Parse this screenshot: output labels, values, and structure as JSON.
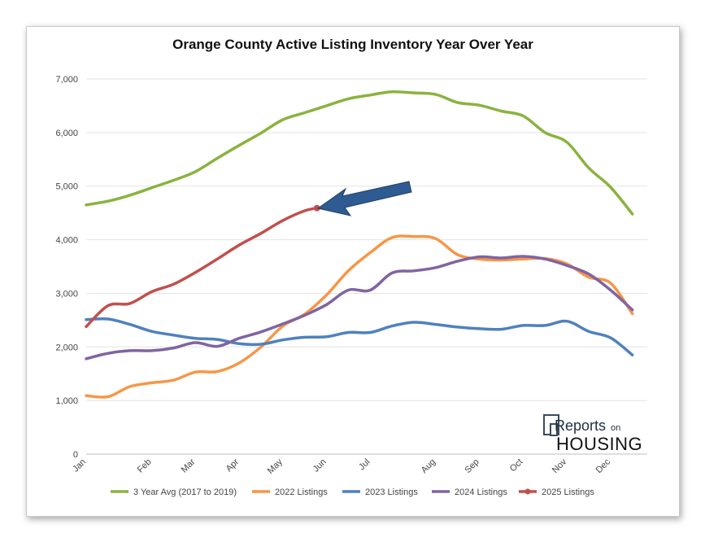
{
  "chart_data": {
    "type": "line",
    "title": "Orange County Active Listing Inventory Year Over Year",
    "xlabel": "",
    "ylabel": "",
    "ylim": [
      0,
      7000
    ],
    "yticks": [
      0,
      1000,
      2000,
      3000,
      4000,
      5000,
      6000,
      7000
    ],
    "ytick_labels": [
      "0",
      "1,000",
      "2,000",
      "3,000",
      "4,000",
      "5,000",
      "6,000",
      "7,000"
    ],
    "xlim": [
      0,
      12.84
    ],
    "x_tick_labels": [
      "Jan",
      "Feb",
      "Mar",
      "Apr",
      "May",
      "Jun",
      "Jul",
      "Aug",
      "Sep",
      "Oct",
      "Nov",
      "Dec"
    ],
    "x_tick_positions": [
      0,
      1.5,
      2.5,
      3.5,
      4.5,
      5.5,
      6.5,
      8,
      9,
      10,
      11,
      12
    ],
    "grid": "horizontal",
    "legend_position": "bottom",
    "series": [
      {
        "name": "3 Year Avg (2017 to 2019)",
        "color": "#8ab33f",
        "points": [
          [
            0,
            4650
          ],
          [
            0.5,
            4720
          ],
          [
            1,
            4830
          ],
          [
            1.5,
            4970
          ],
          [
            2,
            5110
          ],
          [
            2.5,
            5270
          ],
          [
            3,
            5520
          ],
          [
            3.5,
            5760
          ],
          [
            4,
            5990
          ],
          [
            4.5,
            6240
          ],
          [
            5,
            6370
          ],
          [
            5.5,
            6500
          ],
          [
            6,
            6630
          ],
          [
            6.5,
            6700
          ],
          [
            7,
            6760
          ],
          [
            7.5,
            6740
          ],
          [
            8,
            6710
          ],
          [
            8.5,
            6560
          ],
          [
            9,
            6510
          ],
          [
            9.5,
            6400
          ],
          [
            10,
            6310
          ],
          [
            10.5,
            6000
          ],
          [
            11,
            5820
          ],
          [
            11.5,
            5340
          ],
          [
            12,
            4980
          ],
          [
            12.5,
            4480
          ]
        ]
      },
      {
        "name": "2022 Listings",
        "color": "#f79646",
        "points": [
          [
            0,
            1090
          ],
          [
            0.5,
            1070
          ],
          [
            1,
            1260
          ],
          [
            1.5,
            1330
          ],
          [
            2,
            1380
          ],
          [
            2.5,
            1530
          ],
          [
            3,
            1540
          ],
          [
            3.5,
            1700
          ],
          [
            4,
            2000
          ],
          [
            4.5,
            2390
          ],
          [
            5,
            2610
          ],
          [
            5.5,
            2970
          ],
          [
            6,
            3420
          ],
          [
            6.5,
            3760
          ],
          [
            7,
            4040
          ],
          [
            7.5,
            4060
          ],
          [
            8,
            4020
          ],
          [
            8.5,
            3720
          ],
          [
            9,
            3640
          ],
          [
            9.5,
            3620
          ],
          [
            10,
            3640
          ],
          [
            10.5,
            3650
          ],
          [
            11,
            3550
          ],
          [
            11.5,
            3300
          ],
          [
            12,
            3190
          ],
          [
            12.5,
            2620
          ]
        ]
      },
      {
        "name": "2023 Listings",
        "color": "#4f81bd",
        "points": [
          [
            0,
            2510
          ],
          [
            0.5,
            2520
          ],
          [
            1,
            2420
          ],
          [
            1.5,
            2290
          ],
          [
            2,
            2220
          ],
          [
            2.5,
            2160
          ],
          [
            3,
            2140
          ],
          [
            3.5,
            2060
          ],
          [
            4,
            2050
          ],
          [
            4.5,
            2130
          ],
          [
            5,
            2180
          ],
          [
            5.5,
            2190
          ],
          [
            6,
            2270
          ],
          [
            6.5,
            2270
          ],
          [
            7,
            2390
          ],
          [
            7.5,
            2460
          ],
          [
            8,
            2420
          ],
          [
            8.5,
            2370
          ],
          [
            9,
            2340
          ],
          [
            9.5,
            2330
          ],
          [
            10,
            2400
          ],
          [
            10.5,
            2400
          ],
          [
            11,
            2480
          ],
          [
            11.5,
            2290
          ],
          [
            12,
            2170
          ],
          [
            12.5,
            1850
          ]
        ]
      },
      {
        "name": "2024 Listings",
        "color": "#8064a2",
        "points": [
          [
            0,
            1780
          ],
          [
            0.5,
            1880
          ],
          [
            1,
            1930
          ],
          [
            1.5,
            1930
          ],
          [
            2,
            1980
          ],
          [
            2.5,
            2080
          ],
          [
            3,
            2010
          ],
          [
            3.5,
            2160
          ],
          [
            4,
            2280
          ],
          [
            4.5,
            2430
          ],
          [
            5,
            2590
          ],
          [
            5.5,
            2790
          ],
          [
            6,
            3060
          ],
          [
            6.5,
            3060
          ],
          [
            7,
            3380
          ],
          [
            7.5,
            3420
          ],
          [
            8,
            3480
          ],
          [
            8.5,
            3600
          ],
          [
            9,
            3680
          ],
          [
            9.5,
            3660
          ],
          [
            10,
            3690
          ],
          [
            10.5,
            3640
          ],
          [
            11,
            3520
          ],
          [
            11.5,
            3360
          ],
          [
            12,
            3060
          ],
          [
            12.5,
            2690
          ]
        ]
      },
      {
        "name": "2025 Listings",
        "color": "#c0504d",
        "points": [
          [
            0,
            2380
          ],
          [
            0.5,
            2770
          ],
          [
            1,
            2810
          ],
          [
            1.5,
            3030
          ],
          [
            2,
            3170
          ],
          [
            2.5,
            3390
          ],
          [
            3,
            3640
          ],
          [
            3.5,
            3900
          ],
          [
            4,
            4120
          ],
          [
            4.5,
            4360
          ],
          [
            5,
            4540
          ],
          [
            5.28,
            4590
          ]
        ]
      }
    ],
    "annotations": [
      "arrow pointing to end of 2025 Listings line"
    ]
  },
  "logo": {
    "top_text": "Reports",
    "small_text": "on",
    "bottom_text": "HOUSING"
  }
}
